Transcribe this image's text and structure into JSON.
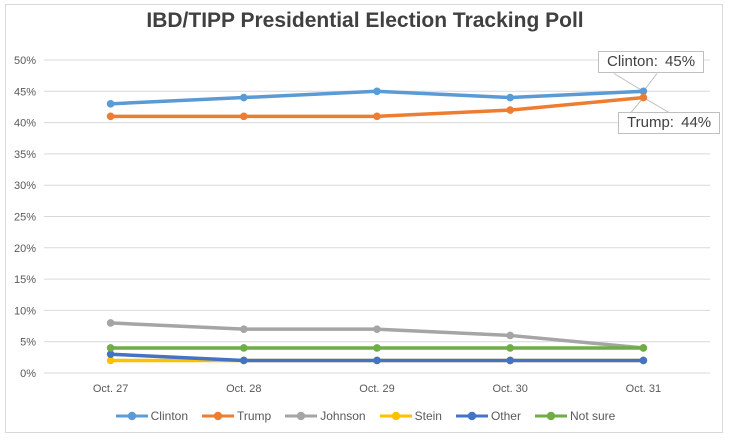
{
  "title": "IBD/TIPP Presidential Election Tracking Poll",
  "colors": {
    "grid": "#D9D9D9",
    "axis_text": "#595959",
    "title_text": "#404040",
    "border": "#D9D9D9",
    "callout_border": "#BFBFBF",
    "callout_text": "#404040",
    "background": "#FFFFFF"
  },
  "chart_data": {
    "type": "line",
    "title": "IBD/TIPP Presidential Election Tracking Poll",
    "x": [
      "Oct. 27",
      "Oct. 28",
      "Oct. 29",
      "Oct. 30",
      "Oct. 31"
    ],
    "series": [
      {
        "name": "Clinton",
        "color": "#5B9BD5",
        "values": [
          43,
          44,
          45,
          44,
          45
        ]
      },
      {
        "name": "Trump",
        "color": "#ED7D31",
        "values": [
          41,
          41,
          41,
          42,
          44
        ]
      },
      {
        "name": "Johnson",
        "color": "#A5A5A5",
        "values": [
          8,
          7,
          7,
          6,
          4
        ]
      },
      {
        "name": "Stein",
        "color": "#FFC000",
        "values": [
          2,
          2,
          2,
          2,
          2
        ]
      },
      {
        "name": "Other",
        "color": "#4472C4",
        "values": [
          3,
          2,
          2,
          2,
          2
        ]
      },
      {
        "name": "Not sure",
        "color": "#70AD47",
        "values": [
          4,
          4,
          4,
          4,
          4
        ]
      }
    ],
    "ylim": [
      0,
      50
    ],
    "y_tick_step": 5,
    "y_ticks": [
      "0%",
      "5%",
      "10%",
      "15%",
      "20%",
      "25%",
      "30%",
      "35%",
      "40%",
      "45%",
      "50%"
    ],
    "xlabel": "",
    "ylabel": "",
    "grid": true,
    "legend_position": "bottom",
    "annotations": [
      {
        "label": "Clinton:  45%",
        "series": "Clinton",
        "point_index": 4
      },
      {
        "label": "Trump:  44%",
        "series": "Trump",
        "point_index": 4
      }
    ]
  }
}
